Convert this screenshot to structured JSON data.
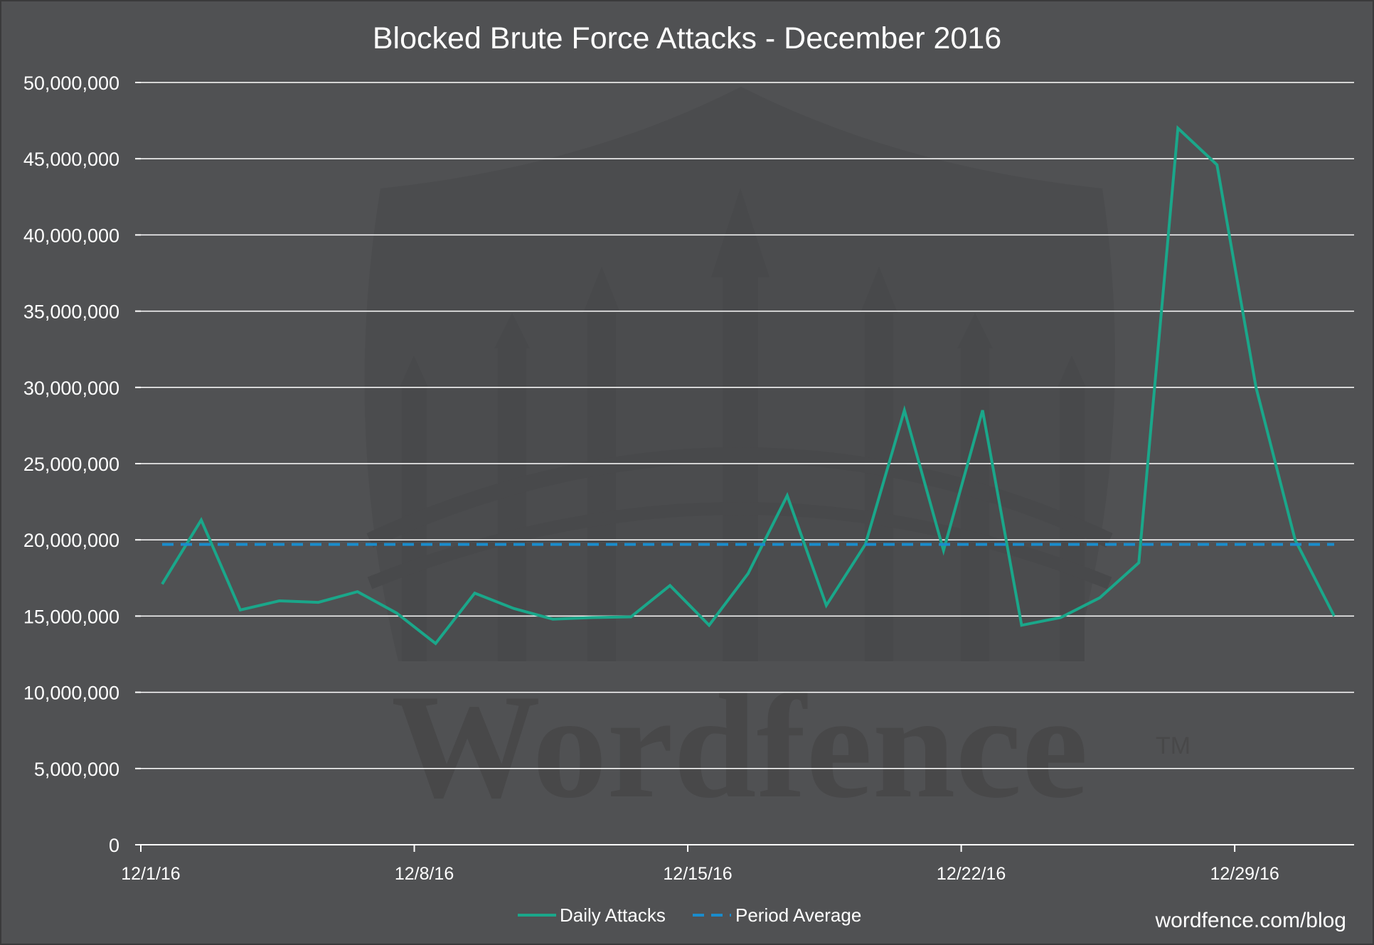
{
  "chart_data": {
    "type": "line",
    "title": "Blocked Brute Force Attacks - December 2016",
    "xlabel": "",
    "ylabel": "",
    "ylim": [
      0,
      50000000
    ],
    "y_tick_step": 5000000,
    "y_ticks": [
      "0",
      "5,000,000",
      "10,000,000",
      "15,000,000",
      "20,000,000",
      "25,000,000",
      "30,000,000",
      "35,000,000",
      "40,000,000",
      "45,000,000",
      "50,000,000"
    ],
    "x_tick_labels": [
      "12/1/16",
      "12/8/16",
      "12/15/16",
      "12/22/16",
      "12/29/16"
    ],
    "x_tick_days": [
      1,
      8,
      15,
      22,
      29
    ],
    "days": [
      1,
      2,
      3,
      4,
      5,
      6,
      7,
      8,
      9,
      10,
      11,
      12,
      13,
      14,
      15,
      16,
      17,
      18,
      19,
      20,
      21,
      22,
      23,
      24,
      25,
      26,
      27,
      28,
      29,
      30,
      31
    ],
    "series": [
      {
        "name": "Daily Attacks",
        "color": "#1aa78a",
        "style": "solid",
        "values": [
          17100000,
          21300000,
          15400000,
          16000000,
          15900000,
          16600000,
          15200000,
          13200000,
          16500000,
          15500000,
          14800000,
          14900000,
          14950000,
          17000000,
          14400000,
          17800000,
          22900000,
          15700000,
          19700000,
          28500000,
          19300000,
          28500000,
          14400000,
          14900000,
          16200000,
          18500000,
          47000000,
          44600000,
          30000000,
          20000000,
          15000000
        ]
      },
      {
        "name": "Period Average",
        "color": "#1a8ccc",
        "style": "dashed",
        "values": [
          19700000,
          19700000,
          19700000,
          19700000,
          19700000,
          19700000,
          19700000,
          19700000,
          19700000,
          19700000,
          19700000,
          19700000,
          19700000,
          19700000,
          19700000,
          19700000,
          19700000,
          19700000,
          19700000,
          19700000,
          19700000,
          19700000,
          19700000,
          19700000,
          19700000,
          19700000,
          19700000,
          19700000,
          19700000,
          19700000,
          19700000
        ]
      }
    ],
    "grid": true,
    "legend_position": "bottom-center"
  },
  "source": "wordfence.com/blog",
  "watermark": "Wordfence",
  "watermark_tm": "TM",
  "colors": {
    "background": "#505153",
    "gridline": "#ffffff",
    "text": "#ffffff",
    "watermark": "#484849"
  }
}
